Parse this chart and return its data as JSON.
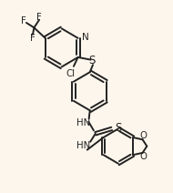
{
  "bg_color": "#fdf6ec",
  "line_color": "#222222",
  "lw": 1.4,
  "fs": 6.8,
  "fsa": 7.5,
  "xlim": [
    0,
    10
  ],
  "ylim": [
    0,
    11
  ]
}
